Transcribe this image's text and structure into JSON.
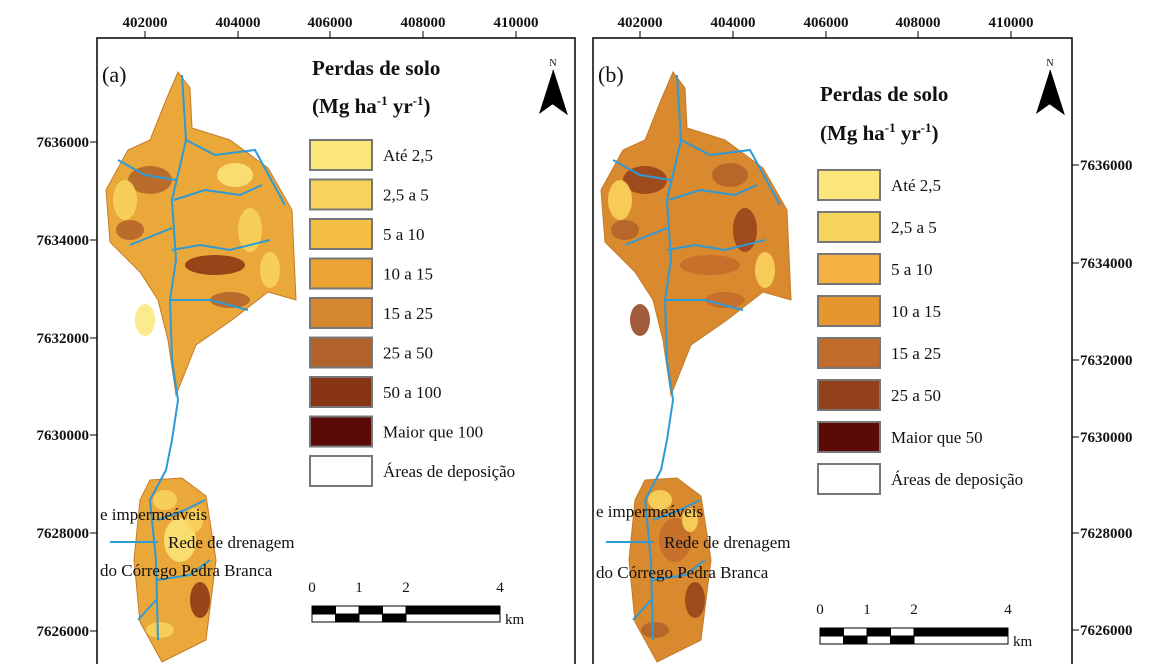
{
  "panels": [
    {
      "label": "(a)",
      "north": "N",
      "x_ticks": [
        "402000",
        "404000",
        "406000",
        "408000",
        "410000"
      ],
      "y_ticks": [
        "7636000",
        "7634000",
        "7632000",
        "7630000",
        "7628000",
        "7626000"
      ],
      "legend": {
        "title": "Perdas de solo",
        "unit": {
          "pre": "(Mg ha",
          "sup1": "-1",
          "mid": " yr",
          "sup2": "-1",
          "post": ")"
        },
        "items": [
          {
            "label": "Até 2,5",
            "color": "#fbe67a"
          },
          {
            "label": "2,5 a 5",
            "color": "#f8d35c"
          },
          {
            "label": "5 a 10",
            "color": "#f4bf42"
          },
          {
            "label": "10 a 15",
            "color": "#eca334"
          },
          {
            "label": "15 a 25",
            "color": "#d5882f"
          },
          {
            "label": "25 a 50",
            "color": "#b1612a"
          },
          {
            "label": "50 a 100",
            "color": "#873414"
          },
          {
            "label": "Maior que 100",
            "color": "#5c0a08"
          }
        ],
        "deposition": [
          "Áreas de deposição",
          "e impermeáveis"
        ],
        "drainage": [
          "Rede de drenagem",
          "do Córrego Pedra Branca"
        ]
      },
      "scale": {
        "labels": [
          "0",
          "1",
          "2",
          "4"
        ],
        "unit": "km"
      }
    },
    {
      "label": "(b)",
      "north": "N",
      "x_ticks": [
        "402000",
        "404000",
        "406000",
        "408000",
        "410000"
      ],
      "y_ticks": [
        "7636000",
        "7634000",
        "7632000",
        "7630000",
        "7628000",
        "7626000"
      ],
      "legend": {
        "title": "Perdas de solo",
        "unit": {
          "pre": "(Mg ha",
          "sup1": "-1",
          "mid": " yr",
          "sup2": "-1",
          "post": ")"
        },
        "items": [
          {
            "label": "Até 2,5",
            "color": "#fbe67a"
          },
          {
            "label": "2,5 a 5",
            "color": "#f8d35c"
          },
          {
            "label": "5 a 10",
            "color": "#f4b340"
          },
          {
            "label": "10 a 15",
            "color": "#e5962f"
          },
          {
            "label": "15 a 25",
            "color": "#c26c2c"
          },
          {
            "label": "25 a 50",
            "color": "#93411a"
          },
          {
            "label": "Maior que 50",
            "color": "#5c0a08"
          }
        ],
        "deposition": [
          "Áreas de deposição",
          "e impermeáveis"
        ],
        "drainage": [
          "Rede de drenagem",
          "do Córrego Pedra Branca"
        ]
      },
      "scale": {
        "labels": [
          "0",
          "1",
          "2",
          "4"
        ],
        "unit": "km"
      }
    }
  ]
}
